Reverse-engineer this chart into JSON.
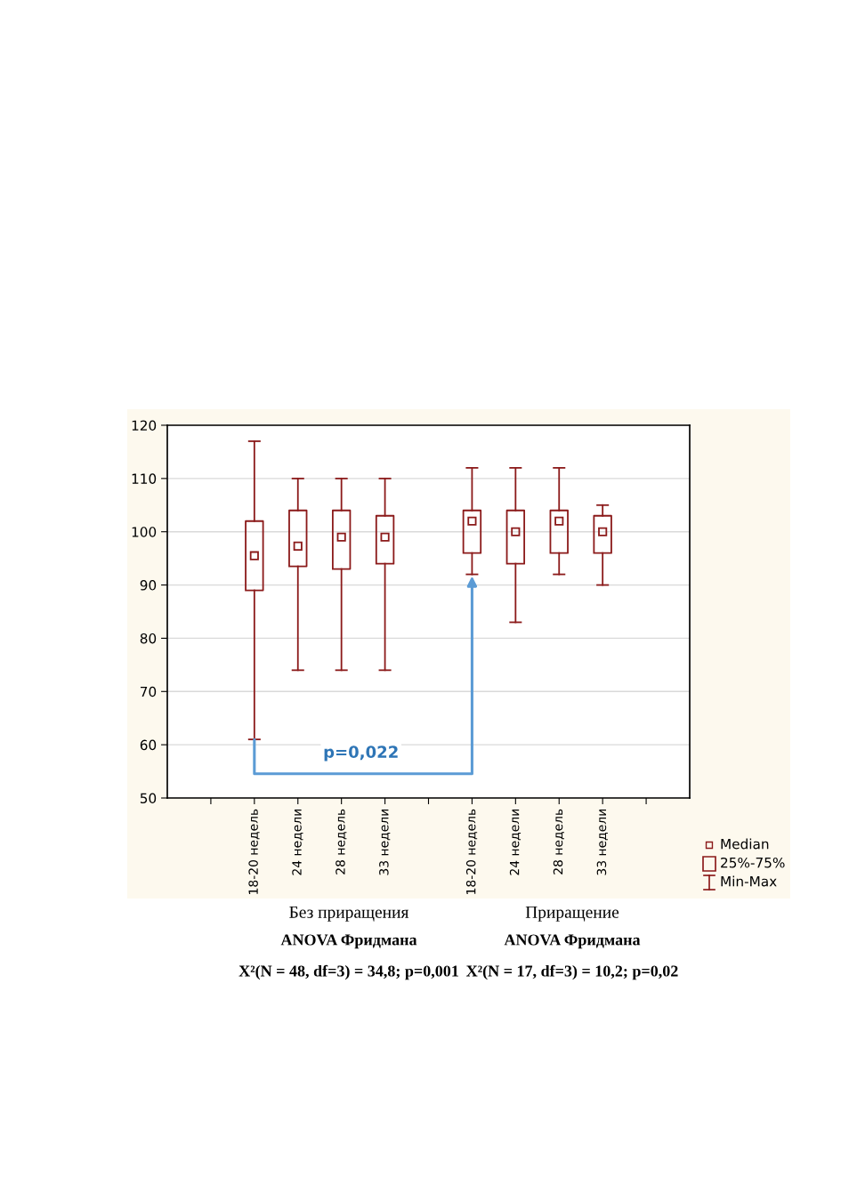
{
  "chart_data": {
    "type": "box",
    "categories": [
      null,
      "18-20 недель",
      "24 недели",
      "28 недель",
      "33 недели",
      null,
      "18-20 недель",
      "24 недели",
      "28 недель",
      "33 недели",
      null
    ],
    "boxes": [
      null,
      {
        "low": 61,
        "q1": 89,
        "median": 95.5,
        "q3": 102,
        "high": 117
      },
      {
        "low": 74,
        "q1": 93.5,
        "median": 97.3,
        "q3": 104,
        "high": 110
      },
      {
        "low": 74,
        "q1": 93,
        "median": 99,
        "q3": 104,
        "high": 110
      },
      {
        "low": 74,
        "q1": 94,
        "median": 99,
        "q3": 103,
        "high": 110
      },
      null,
      {
        "low": 92,
        "q1": 96,
        "median": 102,
        "q3": 104,
        "high": 112
      },
      {
        "low": 83,
        "q1": 94,
        "median": 100,
        "q3": 104,
        "high": 112
      },
      {
        "low": 92,
        "q1": 96,
        "median": 102,
        "q3": 104,
        "high": 112
      },
      {
        "low": 90,
        "q1": 96,
        "median": 100,
        "q3": 103,
        "high": 105
      },
      null
    ],
    "color": "#8b1a1a",
    "ylim": [
      50,
      120
    ],
    "yticks": [
      50,
      60,
      70,
      80,
      90,
      100,
      110,
      120
    ],
    "grid": "y",
    "marker": "square",
    "annotations": [
      "Median",
      "25%-75%",
      "Min-Max",
      "p=0,022",
      "Без приращения",
      "ANOVA Фридмана",
      "X²(N = 48, df=3) = 34,8; p=0,001",
      "Приращение",
      "ANOVA Фридмана",
      "X²(N = 17, df=3) = 10,2; p=0,02"
    ]
  }
}
